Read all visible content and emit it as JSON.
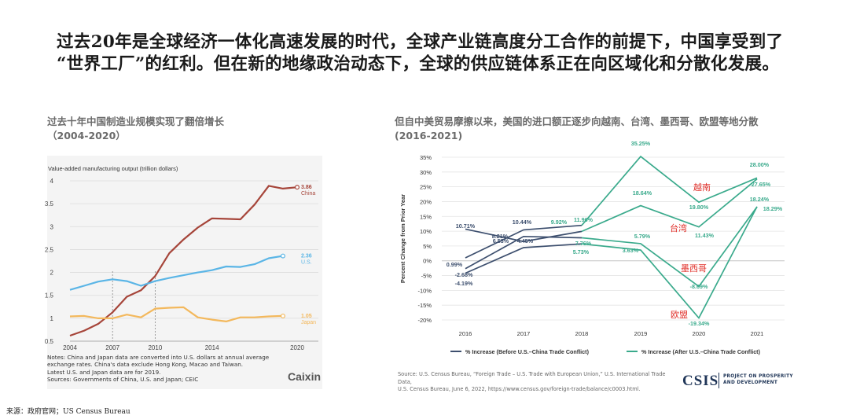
{
  "headline": {
    "line1": "过去20年是全球经济一体化高速发展的时代，全球产业链高度分工合作的前提下，中国享受到了",
    "line2": "“世界工厂”的红利。但在新的地缘政治动态下，全球的供应链体系正在向区域化和分散化发展。"
  },
  "footer_source": "来源：政府官网；US Census Bureau",
  "left_panel": {
    "title_line1": "过去十年中国制造业规模实现了翻倍增长",
    "title_line2": "（2004-2020）",
    "notes": [
      "Notes: China and Japan data are converted into U.S. dollars at annual average",
      "exchange rates. China's data exclude Hong Kong, Macao and Taiwan.",
      "Latest U.S. and Japan data are for 2019.",
      "Sources: Governments of China, U.S. and Japan; CEIC"
    ],
    "brand": "Caixin"
  },
  "right_panel": {
    "title_line1": "但自中美贸易摩擦以来，美国的进口额正逐步向越南、台湾、墨西哥、欧盟等地分散",
    "title_line2": "(2016-2021)",
    "source_lines": [
      "Source: U.S. Census Bureau, “Foreign Trade – U.S. Trade with European Union,” U.S. International Trade Data,",
      "U.S. Census Bureau, June 6, 2022, https://www.census.gov/foreign-trade/balance/c0003.html."
    ],
    "brand": "CSIS",
    "brand_tag_line1": "PROJECT ON PROSPERITY",
    "brand_tag_line2": "AND DEVELOPMENT"
  },
  "chart_data": [
    {
      "type": "line",
      "title": "",
      "ylabel": "Value-added manufacturing output (trillion dollars)",
      "xlim": [
        2004,
        2021
      ],
      "ylim": [
        0.5,
        4
      ],
      "x_ticks": [
        2004,
        2007,
        2010,
        2014,
        2020
      ],
      "y_ticks": [
        0.5,
        1,
        1.5,
        2,
        2.5,
        3,
        3.5,
        4
      ],
      "y_tick_labels": [
        "0.5",
        "1",
        "1.5",
        "2",
        "2.5",
        "3",
        "3.5",
        "4"
      ],
      "grid": "horizontal",
      "reference_lines_x": [
        2007,
        2010
      ],
      "series": [
        {
          "name": "China",
          "color": "#a6453a",
          "end_label": "3.86",
          "x": [
            2004,
            2005,
            2006,
            2007,
            2008,
            2009,
            2010,
            2011,
            2012,
            2013,
            2014,
            2015,
            2016,
            2017,
            2018,
            2019,
            2020
          ],
          "y": [
            0.62,
            0.73,
            0.88,
            1.13,
            1.47,
            1.61,
            1.92,
            2.42,
            2.72,
            2.98,
            3.18,
            3.17,
            3.16,
            3.48,
            3.89,
            3.83,
            3.86
          ]
        },
        {
          "name": "U.S.",
          "color": "#5ab5e6",
          "end_label": "2.36",
          "x": [
            2004,
            2005,
            2006,
            2007,
            2008,
            2009,
            2010,
            2011,
            2012,
            2013,
            2014,
            2015,
            2016,
            2017,
            2018,
            2019
          ],
          "y": [
            1.62,
            1.71,
            1.8,
            1.85,
            1.81,
            1.71,
            1.81,
            1.88,
            1.94,
            2.0,
            2.05,
            2.13,
            2.12,
            2.18,
            2.31,
            2.36
          ]
        },
        {
          "name": "Japan",
          "color": "#f3b85c",
          "end_label": "1.05",
          "x": [
            2004,
            2005,
            2006,
            2007,
            2008,
            2009,
            2010,
            2011,
            2012,
            2013,
            2014,
            2015,
            2016,
            2017,
            2018,
            2019
          ],
          "y": [
            1.04,
            1.05,
            1.0,
            1.0,
            1.08,
            1.02,
            1.21,
            1.23,
            1.24,
            1.02,
            0.97,
            0.93,
            1.02,
            1.02,
            1.04,
            1.05
          ]
        }
      ]
    },
    {
      "type": "line",
      "title": "",
      "ylabel": "Percent Change from Prior Year",
      "categories": [
        "2016",
        "2017",
        "2018",
        "2019",
        "2020",
        "2021"
      ],
      "ylim": [
        -20,
        35
      ],
      "y_ticks": [
        -20,
        -15,
        -10,
        -5,
        0,
        5,
        10,
        15,
        20,
        25,
        30,
        35
      ],
      "y_tick_labels": [
        "-20%",
        "-15%",
        "-10%",
        "-5%",
        "0%",
        "5%",
        "10%",
        "15%",
        "20%",
        "25%",
        "30%",
        "35%"
      ],
      "grid": "horizontal",
      "legend": {
        "position": "bottom",
        "before_label": "% Increase (Before U.S.–China Trade Conflict)",
        "after_label": "% Increase (After U.S.–China Trade Conflict)"
      },
      "colors": {
        "before": "#3d4f6e",
        "after": "#3aaa8c",
        "callout": "#e0302a"
      },
      "series": [
        {
          "name": "越南",
          "before": [
            0.99,
            10.44,
            11.96
          ],
          "after": [
            11.96,
            35.25,
            19.8,
            28.0
          ],
          "labels_before": [
            "0.99%",
            "10.44%",
            "11.96%"
          ],
          "labels_after": [
            "35.25%",
            "19.80%",
            "28.00%"
          ]
        },
        {
          "name": "台湾",
          "before": [
            10.71,
            6.53,
            9.92
          ],
          "after": [
            9.92,
            18.64,
            11.43,
            27.65
          ],
          "labels_before": [
            "10.71%",
            "6.53%",
            "9.92%"
          ],
          "labels_after": [
            "18.64%",
            "11.43%",
            "27.65%"
          ]
        },
        {
          "name": "墨西哥",
          "before": [
            -2.68,
            8.21,
            7.76
          ],
          "after": [
            7.76,
            5.79,
            -8.69,
            18.24
          ],
          "labels_before": [
            "-2.68%",
            "8.21%",
            "7.76%"
          ],
          "labels_after": [
            "5.79%",
            "-8.69%",
            "18.24%"
          ]
        },
        {
          "name": "欧盟",
          "before": [
            -4.19,
            4.45,
            5.73
          ],
          "after": [
            5.73,
            3.63,
            -19.34,
            18.29
          ],
          "labels_before": [
            "-4.19%",
            "4.45%",
            "5.73%"
          ],
          "labels_after": [
            "3.63%",
            "-19.34%",
            "18.29%"
          ]
        }
      ]
    }
  ]
}
